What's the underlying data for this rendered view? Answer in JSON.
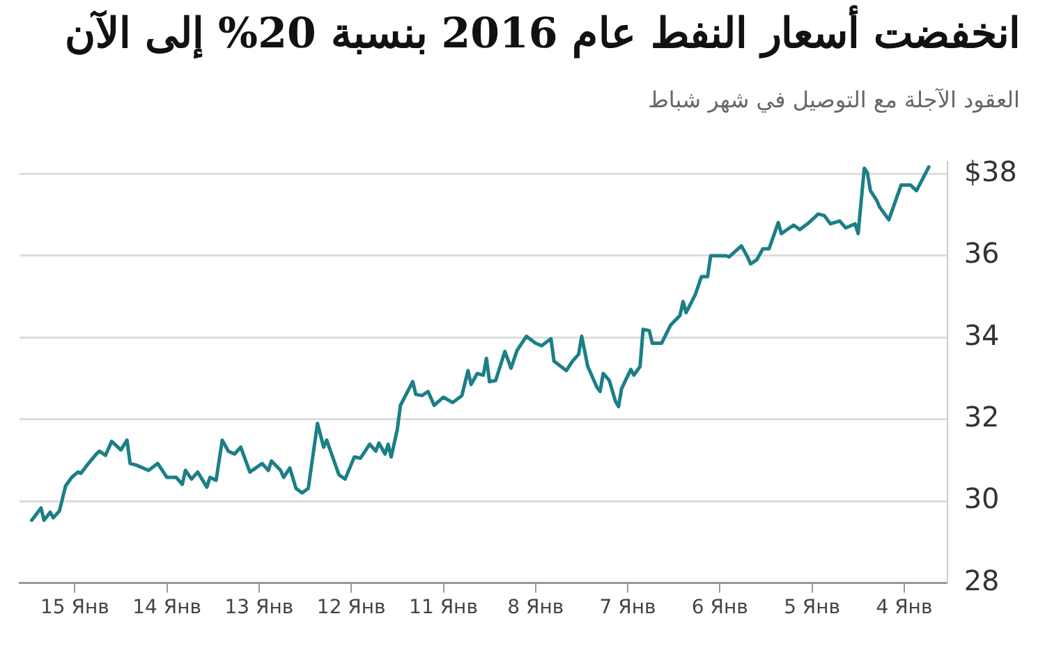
{
  "chart_data": {
    "type": "line",
    "title": "انخفضت أسعار النفط عام 2016 بنسبة 20% إلى الآن",
    "subtitle": "العقود الآجلة مع التوصيل في شهر شباط",
    "categories": [
      null,
      null,
      null,
      null,
      null,
      null,
      null,
      null,
      null,
      null,
      null,
      null,
      null,
      null,
      null,
      null,
      null,
      null,
      "15 Янв",
      null,
      null,
      null,
      null,
      null,
      null,
      null,
      null,
      null,
      null,
      null,
      null,
      null,
      null,
      null,
      null,
      null,
      null,
      null,
      null,
      null,
      null,
      null,
      null,
      null,
      null,
      null,
      null,
      null,
      "14 Янв",
      null,
      null,
      null,
      null,
      null,
      null,
      null,
      null,
      null,
      null,
      null,
      null,
      null,
      null,
      null,
      null,
      null,
      null,
      null,
      null,
      null,
      null,
      null,
      null,
      null,
      null,
      null,
      null,
      null,
      "13 Янв",
      null,
      null,
      null,
      null,
      null,
      null,
      null,
      null,
      null,
      null,
      null,
      null,
      null,
      null,
      null,
      null,
      null,
      null,
      null,
      null,
      null,
      null,
      null,
      null,
      null,
      null,
      null,
      null,
      null,
      "12 Янв",
      null,
      null,
      null,
      null,
      null,
      null,
      null,
      null,
      null,
      null,
      null,
      null,
      null,
      null,
      null,
      null,
      null,
      null,
      null,
      null,
      null,
      null,
      null,
      null,
      null,
      null,
      null,
      null,
      null,
      "11 Янв",
      null,
      null,
      null,
      null,
      null,
      null,
      null,
      null,
      null,
      null,
      null,
      null,
      null,
      null,
      null,
      null,
      null,
      null,
      null,
      null,
      null,
      null,
      null,
      null,
      null,
      null,
      null,
      null,
      null,
      "8 Янв",
      null,
      null,
      null,
      null,
      null,
      null,
      null,
      null,
      null,
      null,
      null,
      null,
      null,
      null,
      null,
      null,
      null,
      null,
      null,
      null,
      null,
      null,
      null,
      null,
      null,
      null,
      null,
      null,
      null,
      "7 Янв",
      null,
      null,
      null,
      null,
      null,
      null,
      null,
      null,
      null,
      null,
      null,
      null,
      null,
      null,
      null,
      null,
      null,
      null,
      null,
      null,
      null,
      null,
      null,
      null,
      null,
      null,
      null,
      null,
      null,
      "6 Янв",
      null,
      null,
      null,
      null,
      null,
      null,
      null,
      null,
      null,
      null,
      null,
      null,
      null,
      null,
      null,
      null,
      null,
      null,
      null,
      null,
      null,
      null,
      null,
      null,
      null,
      null,
      null,
      null,
      null,
      "5 Янв",
      null,
      null,
      null,
      null,
      null,
      null,
      null,
      null,
      null,
      null,
      null,
      null,
      null,
      null,
      null,
      null,
      null,
      null,
      null,
      null,
      null,
      null,
      null,
      null,
      null,
      null,
      null,
      null,
      null,
      "4 Янв",
      null,
      null,
      null,
      null,
      null,
      null,
      null,
      null,
      null,
      null,
      null,
      null,
      null,
      null
    ],
    "series": [
      {
        "color": "#1b7f86",
        "values": [
          null,
          null,
          null,
          null,
          29.53,
          null,
          null,
          29.83,
          29.53,
          null,
          29.73,
          29.59,
          null,
          29.76,
          null,
          30.37,
          null,
          30.58,
          null,
          30.71,
          30.68,
          null,
          30.88,
          null,
          null,
          31.15,
          31.22,
          null,
          31.12,
          null,
          31.46,
          null,
          null,
          31.25,
          null,
          31.49,
          30.92,
          null,
          30.88,
          null,
          null,
          null,
          30.75,
          null,
          null,
          30.92,
          null,
          null,
          30.58,
          null,
          null,
          30.58,
          null,
          30.41,
          30.75,
          null,
          30.54,
          null,
          30.71,
          null,
          null,
          30.34,
          30.58,
          null,
          30.51,
          null,
          31.49,
          null,
          31.22,
          null,
          31.15,
          null,
          31.32,
          null,
          null,
          30.71,
          null,
          null,
          null,
          30.92,
          null,
          30.75,
          30.98,
          null,
          null,
          30.75,
          30.58,
          null,
          30.81,
          null,
          30.31,
          null,
          30.2,
          null,
          30.31,
          null,
          null,
          31.9,
          null,
          31.32,
          31.49,
          null,
          null,
          null,
          30.64,
          null,
          30.54,
          null,
          null,
          31.08,
          null,
          31.05,
          null,
          null,
          31.39,
          null,
          31.22,
          31.42,
          null,
          31.15,
          31.39,
          31.08,
          null,
          31.76,
          32.34,
          null,
          null,
          null,
          32.92,
          32.61,
          null,
          32.58,
          null,
          32.68,
          null,
          32.34,
          null,
          null,
          32.54,
          null,
          null,
          32.41,
          null,
          null,
          32.58,
          null,
          33.19,
          32.85,
          null,
          33.12,
          null,
          33.08,
          33.49,
          32.92,
          null,
          32.95,
          null,
          null,
          33.66,
          null,
          33.25,
          null,
          33.69,
          null,
          null,
          34.03,
          null,
          null,
          33.86,
          null,
          33.8,
          null,
          null,
          33.97,
          33.42,
          null,
          null,
          null,
          33.19,
          null,
          33.42,
          null,
          33.59,
          34.03,
          null,
          33.29,
          null,
          null,
          32.78,
          32.68,
          33.12,
          null,
          32.95,
          null,
          32.44,
          32.31,
          32.75,
          null,
          null,
          33.22,
          33.08,
          null,
          33.29,
          34.2,
          null,
          34.17,
          33.86,
          null,
          null,
          33.86,
          null,
          null,
          34.31,
          null,
          null,
          34.54,
          34.88,
          34.61,
          null,
          null,
          35.05,
          null,
          35.49,
          null,
          35.49,
          36.0,
          null,
          null,
          null,
          null,
          36.0,
          35.97,
          null,
          null,
          null,
          36.24,
          null,
          35.97,
          35.8,
          null,
          35.9,
          null,
          36.17,
          null,
          36.17,
          null,
          null,
          36.81,
          36.54,
          null,
          null,
          null,
          36.75,
          null,
          36.64,
          null,
          null,
          36.81,
          null,
          null,
          37.02,
          null,
          36.98,
          null,
          36.78,
          null,
          null,
          36.85,
          null,
          36.68,
          null,
          null,
          36.78,
          36.54,
          null,
          38.14,
          38.03,
          37.59,
          null,
          37.36,
          37.19,
          null,
          null,
          36.88,
          null,
          null,
          null,
          37.73,
          null,
          null,
          37.73,
          null,
          37.59,
          null,
          null,
          null,
          38.17,
          null,
          null,
          null,
          null,
          null,
          null
        ]
      }
    ],
    "ylim": [
      28,
      38.3
    ],
    "yticks": [
      28,
      30,
      32,
      34,
      36,
      {
        "value": 38,
        "label": "$38"
      }
    ],
    "grid": "y",
    "legend": false,
    "marker": "none",
    "line_style": "solid"
  }
}
